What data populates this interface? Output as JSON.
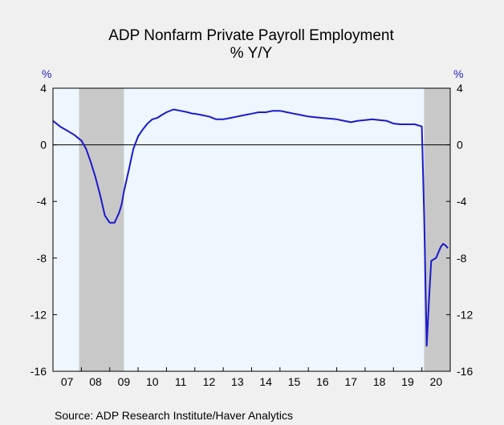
{
  "chart_data": {
    "type": "line",
    "title": "ADP Nonfarm Private Payroll Employment",
    "subtitle": "% Y/Y",
    "y_unit_left": "%",
    "y_unit_right": "%",
    "ylim": [
      -16,
      4
    ],
    "yticks": [
      "4",
      "0",
      "-4",
      "-8",
      "-12",
      "-16"
    ],
    "yticks_values": [
      4,
      0,
      -4,
      -8,
      -12,
      -16
    ],
    "xlim": [
      2007.0,
      2021.0
    ],
    "xtick_labels": [
      "07",
      "08",
      "09",
      "10",
      "11",
      "12",
      "13",
      "14",
      "15",
      "16",
      "17",
      "18",
      "19",
      "20"
    ],
    "xtick_years": [
      2007,
      2008,
      2009,
      2010,
      2011,
      2012,
      2013,
      2014,
      2015,
      2016,
      2017,
      2018,
      2019,
      2020
    ],
    "recessions": [
      [
        2007.92,
        2009.5
      ],
      [
        2020.08,
        2021.0
      ]
    ],
    "source": "Source:  ADP Research Institute/Haver Analytics",
    "colors": {
      "line": "#1a1acc",
      "plot_bg": "#eef6ff",
      "recession": "#c8c8c8",
      "axis_text": "#1f1fbf"
    },
    "series": [
      {
        "x": [
          2007.0,
          2007.25,
          2007.5,
          2007.75,
          2008.0,
          2008.17,
          2008.33,
          2008.5,
          2008.67,
          2008.83,
          2009.0,
          2009.17,
          2009.33,
          2009.42,
          2009.5,
          2009.67,
          2009.83,
          2010.0,
          2010.17,
          2010.33,
          2010.5,
          2010.67,
          2010.83,
          2011.0,
          2011.25,
          2011.5,
          2011.75,
          2011.92,
          2012.0,
          2012.25,
          2012.5,
          2012.75,
          2013.0,
          2013.25,
          2013.5,
          2013.75,
          2014.0,
          2014.25,
          2014.5,
          2014.75,
          2015.0,
          2015.25,
          2015.5,
          2015.75,
          2016.0,
          2016.25,
          2016.5,
          2016.75,
          2017.0,
          2017.25,
          2017.5,
          2017.75,
          2018.0,
          2018.25,
          2018.5,
          2018.75,
          2019.0,
          2019.25,
          2019.5,
          2019.75,
          2020.0,
          2020.08,
          2020.17,
          2020.25,
          2020.33,
          2020.5,
          2020.67,
          2020.75,
          2020.83,
          2020.92
        ],
        "y": [
          1.7,
          1.3,
          1.0,
          0.7,
          0.3,
          -0.3,
          -1.2,
          -2.3,
          -3.6,
          -5.0,
          -5.5,
          -5.5,
          -4.8,
          -4.2,
          -3.3,
          -1.8,
          -0.3,
          0.6,
          1.1,
          1.5,
          1.8,
          1.9,
          2.1,
          2.3,
          2.5,
          2.4,
          2.3,
          2.2,
          2.2,
          2.1,
          2.0,
          1.8,
          1.8,
          1.9,
          2.0,
          2.1,
          2.2,
          2.3,
          2.3,
          2.4,
          2.4,
          2.3,
          2.2,
          2.1,
          2.0,
          1.95,
          1.9,
          1.85,
          1.8,
          1.7,
          1.6,
          1.7,
          1.75,
          1.8,
          1.75,
          1.7,
          1.5,
          1.45,
          1.45,
          1.45,
          1.3,
          -5.0,
          -14.2,
          -11.0,
          -8.2,
          -8.0,
          -7.2,
          -7.0,
          -7.1,
          -7.3
        ]
      }
    ]
  }
}
